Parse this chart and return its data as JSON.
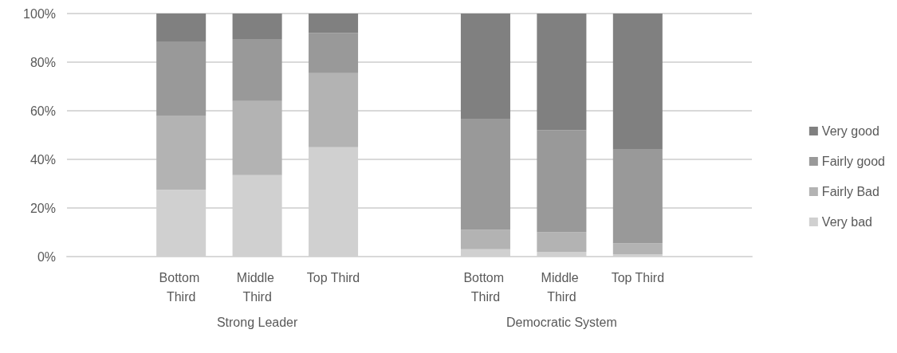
{
  "chart_data": {
    "type": "bar",
    "stacked": true,
    "categories": [
      null,
      "Bottom Third",
      "Middle Third",
      "Top Third",
      null,
      "Bottom Third",
      "Middle Third",
      "Top Third",
      null
    ],
    "series": [
      {
        "name": "Very bad",
        "color": "#d0d0d0",
        "values": [
          null,
          27.5,
          33.5,
          45,
          null,
          3,
          2,
          1,
          null
        ]
      },
      {
        "name": "Fairly Bad",
        "color": "#b3b3b3",
        "values": [
          null,
          30.5,
          30.5,
          30.5,
          null,
          8,
          8,
          4.5,
          null
        ]
      },
      {
        "name": "Fairly good",
        "color": "#999999",
        "values": [
          null,
          30.5,
          25.5,
          16.5,
          null,
          45.5,
          42,
          38.5,
          null
        ]
      },
      {
        "name": "Very good",
        "color": "#808080",
        "values": [
          null,
          11.5,
          10.5,
          8,
          null,
          43.5,
          48,
          56,
          null
        ]
      }
    ],
    "ylim": [
      0,
      100
    ],
    "yticks": [
      {
        "value": 0,
        "label": "0%"
      },
      {
        "value": 20,
        "label": "20%"
      },
      {
        "value": 40,
        "label": "40%"
      },
      {
        "value": 60,
        "label": "60%"
      },
      {
        "value": 80,
        "label": "80%"
      },
      {
        "value": 100,
        "label": "100%"
      }
    ],
    "grid": "y",
    "legend": "right",
    "annotations": [
      "Strong Leader",
      "Democratic System"
    ]
  }
}
